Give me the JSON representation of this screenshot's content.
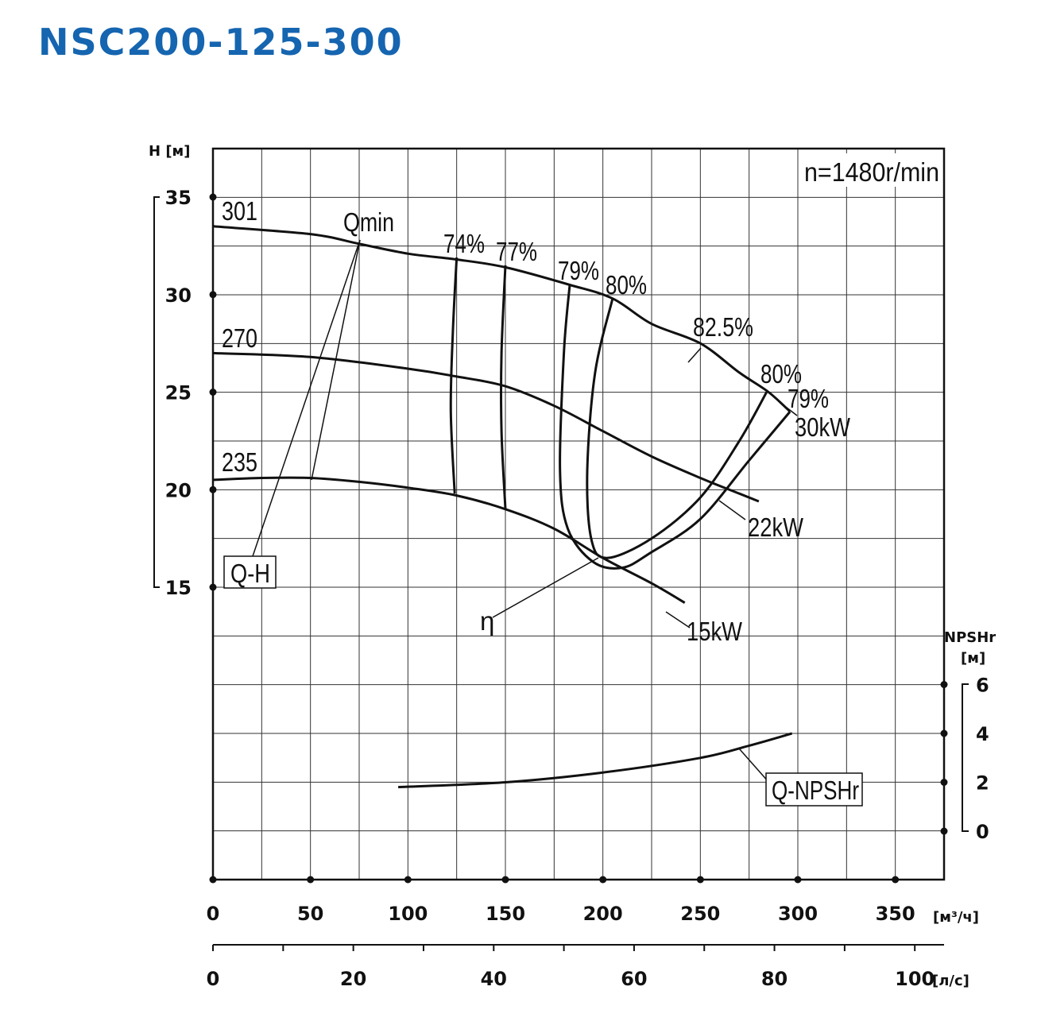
{
  "title": "NSC200-125-300",
  "chart_data": {
    "type": "line",
    "speed_label": "n=1480r/min",
    "y_axis": {
      "label": "H [м]",
      "range": [
        15,
        35
      ],
      "ticks": [
        35,
        30,
        25,
        20,
        15
      ]
    },
    "npsh_axis": {
      "label_line1": "NPSHr",
      "label_line2": "[м]",
      "range": [
        0,
        6
      ],
      "ticks": [
        6,
        4,
        2,
        0
      ]
    },
    "x_axis_m3h": {
      "unit": "[м³/ч]",
      "range": [
        0,
        375
      ],
      "ticks": [
        0,
        50,
        100,
        150,
        200,
        250,
        300,
        350
      ]
    },
    "x_axis_ls": {
      "unit": "[л/с]",
      "range": [
        0,
        104.2
      ],
      "ticks": [
        0,
        20,
        40,
        60,
        80,
        100
      ]
    },
    "impeller_curves": [
      {
        "name": "301",
        "points": [
          [
            0,
            33.5
          ],
          [
            50,
            33.1
          ],
          [
            75,
            32.6
          ],
          [
            100,
            32.1
          ],
          [
            125,
            31.8
          ],
          [
            150,
            31.4
          ],
          [
            183,
            30.5
          ],
          [
            205,
            29.8
          ],
          [
            225,
            28.5
          ],
          [
            250,
            27.5
          ],
          [
            270,
            26.0
          ],
          [
            285,
            25.0
          ],
          [
            296,
            24.0
          ]
        ]
      },
      {
        "name": "270",
        "points": [
          [
            0,
            27.0
          ],
          [
            50,
            26.8
          ],
          [
            100,
            26.2
          ],
          [
            125,
            25.8
          ],
          [
            150,
            25.3
          ],
          [
            175,
            24.3
          ],
          [
            200,
            23.0
          ],
          [
            225,
            21.7
          ],
          [
            250,
            20.6
          ],
          [
            270,
            19.8
          ],
          [
            280,
            19.4
          ]
        ]
      },
      {
        "name": "235",
        "points": [
          [
            0,
            20.5
          ],
          [
            25,
            20.6
          ],
          [
            50,
            20.6
          ],
          [
            75,
            20.4
          ],
          [
            100,
            20.1
          ],
          [
            125,
            19.7
          ],
          [
            150,
            19.0
          ],
          [
            175,
            18.0
          ],
          [
            200,
            16.5
          ],
          [
            225,
            15.2
          ],
          [
            242,
            14.2
          ]
        ]
      }
    ],
    "efficiency_labels": [
      "74%",
      "77%",
      "79%",
      "80%",
      "82.5%",
      "80%",
      "79%"
    ],
    "efficiency_contours": [
      {
        "name": "74%",
        "points": [
          [
            125,
            31.9
          ],
          [
            123,
            28
          ],
          [
            122,
            24
          ],
          [
            124,
            19.8
          ]
        ]
      },
      {
        "name": "77%",
        "points": [
          [
            150,
            31.5
          ],
          [
            148,
            27
          ],
          [
            148,
            23
          ],
          [
            150,
            19.0
          ]
        ]
      },
      {
        "name": "79%",
        "points": [
          [
            183,
            30.5
          ],
          [
            180,
            27
          ],
          [
            178,
            21
          ],
          [
            182,
            18
          ],
          [
            195,
            16.3
          ],
          [
            210,
            16.0
          ],
          [
            225,
            16.8
          ],
          [
            250,
            18.5
          ],
          [
            275,
            21.5
          ],
          [
            296,
            24.0
          ]
        ]
      },
      {
        "name": "80%",
        "points": [
          [
            205,
            29.8
          ],
          [
            196,
            26
          ],
          [
            192,
            21
          ],
          [
            194,
            17.5
          ],
          [
            202,
            16.5
          ],
          [
            225,
            17.5
          ],
          [
            250,
            19.6
          ],
          [
            270,
            22.5
          ],
          [
            284,
            25.0
          ]
        ]
      }
    ],
    "power_labels": [
      "30kW",
      "22kW",
      "15kW"
    ],
    "npsh_curve": {
      "name": "Q-NPSHr",
      "points": [
        [
          95,
          1.8
        ],
        [
          150,
          2.0
        ],
        [
          200,
          2.4
        ],
        [
          250,
          3.0
        ],
        [
          275,
          3.5
        ],
        [
          297,
          4.0
        ]
      ]
    },
    "callouts": {
      "qmin": "Qmin",
      "qh": "Q-H",
      "eta": "η",
      "npsh": "Q-NPSHr"
    }
  }
}
